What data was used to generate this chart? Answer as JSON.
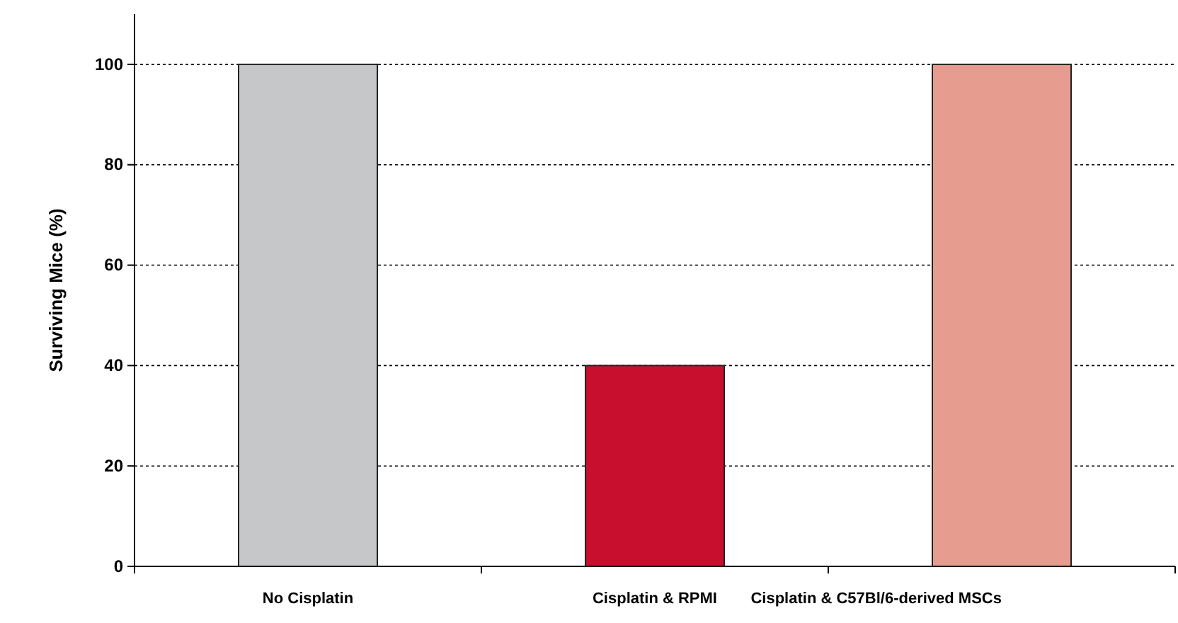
{
  "chart_data": {
    "type": "bar",
    "ylabel": "Surviving Mice (%)",
    "categories": [
      "No Cisplatin",
      "Cisplatin & RPMI",
      "Cisplatin & C57Bl/6-derived MSCs"
    ],
    "values": [
      100,
      40,
      100
    ],
    "colors": [
      "#c6c7c9",
      "#c8102e",
      "#e69d90"
    ],
    "ylim": [
      0,
      110
    ],
    "yticks": [
      0,
      20,
      40,
      60,
      80,
      100
    ],
    "grid": "y"
  }
}
